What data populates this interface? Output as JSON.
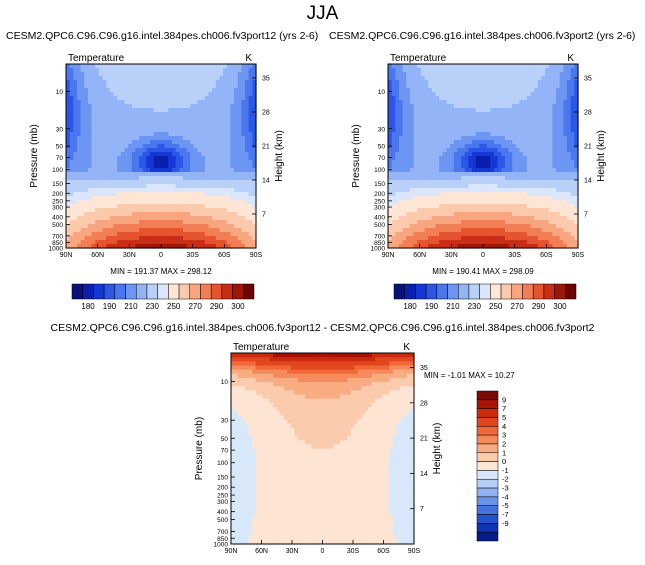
{
  "season": "JJA",
  "panels": [
    {
      "id": "left",
      "title": "CESM2.QPC6.C96.C96.g16.intel.384pes.ch006.fv3port12 (yrs 2-6)",
      "variable": "Temperature",
      "units": "K",
      "stats": "MIN = 191.37  MAX = 298.12",
      "colorbar": {
        "labels": [
          "180",
          "190",
          "210",
          "230",
          "250",
          "270",
          "290",
          "300"
        ]
      }
    },
    {
      "id": "right",
      "title": "CESM2.QPC6.C96.C96.g16.intel.384pes.ch006.fv3port2 (yrs 2-6)",
      "variable": "Temperature",
      "units": "K",
      "stats": "MIN = 190.41  MAX = 298.09",
      "colorbar": {
        "labels": [
          "180",
          "190",
          "210",
          "230",
          "250",
          "270",
          "290",
          "300"
        ]
      }
    },
    {
      "id": "diff",
      "title": "CESM2.QPC6.C96.C96.g16.intel.384pes.ch006.fv3port12 - CESM2.QPC6.C96.C96.g16.intel.384pes.ch006.fv3port2",
      "variable": "Temperature",
      "units": "K",
      "stats": "MIN = -1.01  MAX = 10.27",
      "colorbar": {
        "labels": [
          "9",
          "7",
          "5",
          "4",
          "3",
          "2",
          "1",
          "0",
          "-1",
          "-2",
          "-3",
          "-4",
          "-5",
          "-7",
          "-9"
        ]
      }
    }
  ],
  "axes": {
    "ylabel_left": "Pressure (mb)",
    "ylabel_right": "Height (km)",
    "x_ticks": [
      "90N",
      "60N",
      "30N",
      "0",
      "30S",
      "60S",
      "90S"
    ],
    "pressure_ticks": [
      "10",
      "30",
      "50",
      "70",
      "100",
      "150",
      "200",
      "250",
      "300",
      "400",
      "500",
      "700",
      "850",
      "1000"
    ],
    "height_ticks": [
      "35",
      "28",
      "21",
      "14",
      "7"
    ]
  },
  "chart_data": [
    {
      "type": "heatmap",
      "title": "CESM2.QPC6.C96.C96.g16.intel.384pes.ch006.fv3port12 (yrs 2-6)",
      "variable": "Temperature",
      "units": "K",
      "xlabel": "",
      "ylabel": "Pressure (mb)",
      "y2label": "Height (km)",
      "x": [
        "90N",
        "60N",
        "30N",
        "0",
        "30S",
        "60S",
        "90S"
      ],
      "y_pressure": [
        10,
        30,
        50,
        70,
        100,
        150,
        200,
        250,
        300,
        400,
        500,
        700,
        850,
        1000
      ],
      "y2_height_km": [
        7,
        14,
        21,
        28,
        35
      ],
      "min": 191.37,
      "max": 298.12,
      "colorbar_levels": [
        180,
        190,
        210,
        230,
        250,
        270,
        290,
        300
      ]
    },
    {
      "type": "heatmap",
      "title": "CESM2.QPC6.C96.C96.g16.intel.384pes.ch006.fv3port2 (yrs 2-6)",
      "variable": "Temperature",
      "units": "K",
      "xlabel": "",
      "ylabel": "Pressure (mb)",
      "y2label": "Height (km)",
      "x": [
        "90N",
        "60N",
        "30N",
        "0",
        "30S",
        "60S",
        "90S"
      ],
      "y_pressure": [
        10,
        30,
        50,
        70,
        100,
        150,
        200,
        250,
        300,
        400,
        500,
        700,
        850,
        1000
      ],
      "y2_height_km": [
        7,
        14,
        21,
        28,
        35
      ],
      "min": 190.41,
      "max": 298.09,
      "colorbar_levels": [
        180,
        190,
        210,
        230,
        250,
        270,
        290,
        300
      ]
    },
    {
      "type": "heatmap",
      "title": "CESM2.QPC6.C96.C96.g16.intel.384pes.ch006.fv3port12 - CESM2.QPC6.C96.C96.g16.intel.384pes.ch006.fv3port2",
      "variable": "Temperature",
      "units": "K",
      "xlabel": "",
      "ylabel": "Pressure (mb)",
      "y2label": "Height (km)",
      "x": [
        "90N",
        "60N",
        "30N",
        "0",
        "30S",
        "60S",
        "90S"
      ],
      "y_pressure": [
        10,
        30,
        50,
        70,
        100,
        150,
        200,
        250,
        300,
        400,
        500,
        700,
        850,
        1000
      ],
      "y2_height_km": [
        7,
        14,
        21,
        28,
        35
      ],
      "min": -1.01,
      "max": 10.27,
      "colorbar_levels": [
        -9,
        -7,
        -5,
        -4,
        -3,
        -2,
        -1,
        0,
        1,
        2,
        3,
        4,
        5,
        7,
        9
      ]
    }
  ],
  "colors": {
    "temp_scale": [
      "#08127a",
      "#0b1fae",
      "#1537d6",
      "#2b56e8",
      "#4a76ee",
      "#6d95f2",
      "#93b4f6",
      "#b9d0f9",
      "#dae6fb",
      "#fde6d5",
      "#fbc9ac",
      "#f7a680",
      "#f27e55",
      "#e5532f",
      "#c82d16",
      "#9e1606",
      "#6b0602"
    ],
    "diff_scale": [
      "#7a0a04",
      "#a81207",
      "#cc2a0d",
      "#e2461f",
      "#f0683a",
      "#f68a5a",
      "#f9ac82",
      "#fbcbad",
      "#fde4d3",
      "#d8e8fb",
      "#b5d0f6",
      "#8fb2f0",
      "#6a92ea",
      "#4672e0",
      "#2452cf",
      "#0e35b3",
      "#061c8a"
    ]
  }
}
